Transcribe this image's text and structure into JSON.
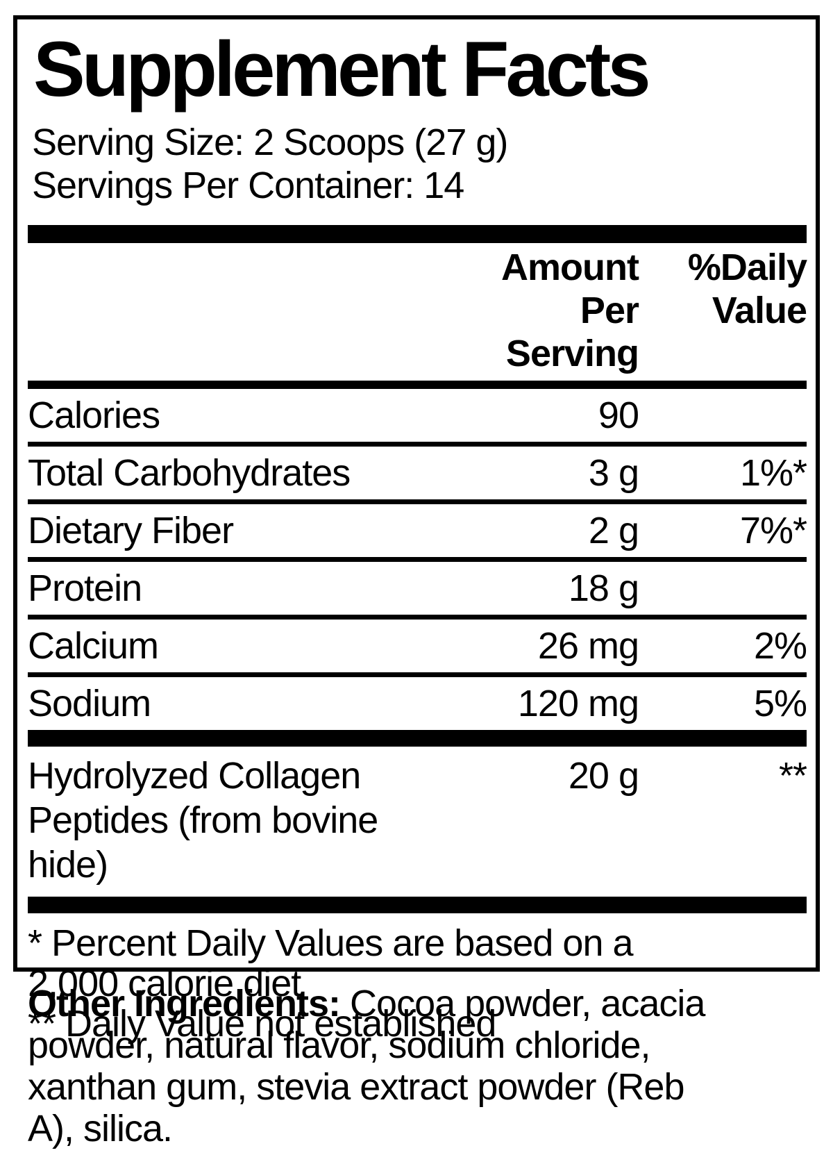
{
  "title": "Supplement Facts",
  "serving": {
    "serving_size": "Serving Size: 2 Scoops (27 g)",
    "servings_per_container": "Servings Per Container: 14"
  },
  "table": {
    "headers": {
      "amount_line1": "Amount Per",
      "amount_line2": "Serving",
      "dv_line1": "%Daily",
      "dv_line2": "Value"
    },
    "rows": [
      {
        "name": "Calories",
        "amount": "90",
        "dv": ""
      },
      {
        "name": "Total Carbohydrates",
        "amount": "3 g",
        "dv": "1%*"
      },
      {
        "name": "Dietary Fiber",
        "amount": "2 g",
        "dv": "7%*"
      },
      {
        "name": "Protein",
        "amount": "18 g",
        "dv": ""
      },
      {
        "name": "Calcium",
        "amount": "26 mg",
        "dv": "2%"
      },
      {
        "name": "Sodium",
        "amount": "120 mg",
        "dv": "5%"
      }
    ],
    "collagen_row": {
      "name_line1": "Hydrolyzed Collagen",
      "name_line2": "Peptides (from bovine hide)",
      "amount": "20 g",
      "dv": "**"
    }
  },
  "footnotes": {
    "percent_line1": "* Percent Daily Values are based on a",
    "percent_line2": "2,000 calorie diet",
    "not_established": "** Daily Value not established"
  },
  "other_ingredients": {
    "label": "Other Ingredients:",
    "line1_rest": " Cocoa powder, acacia",
    "line2": "powder, natural flavor, sodium chloride,",
    "line3": "xanthan gum, stevia extract powder (Reb",
    "line4": "A), silica."
  },
  "colors": {
    "text": "#000000",
    "background": "#ffffff"
  }
}
